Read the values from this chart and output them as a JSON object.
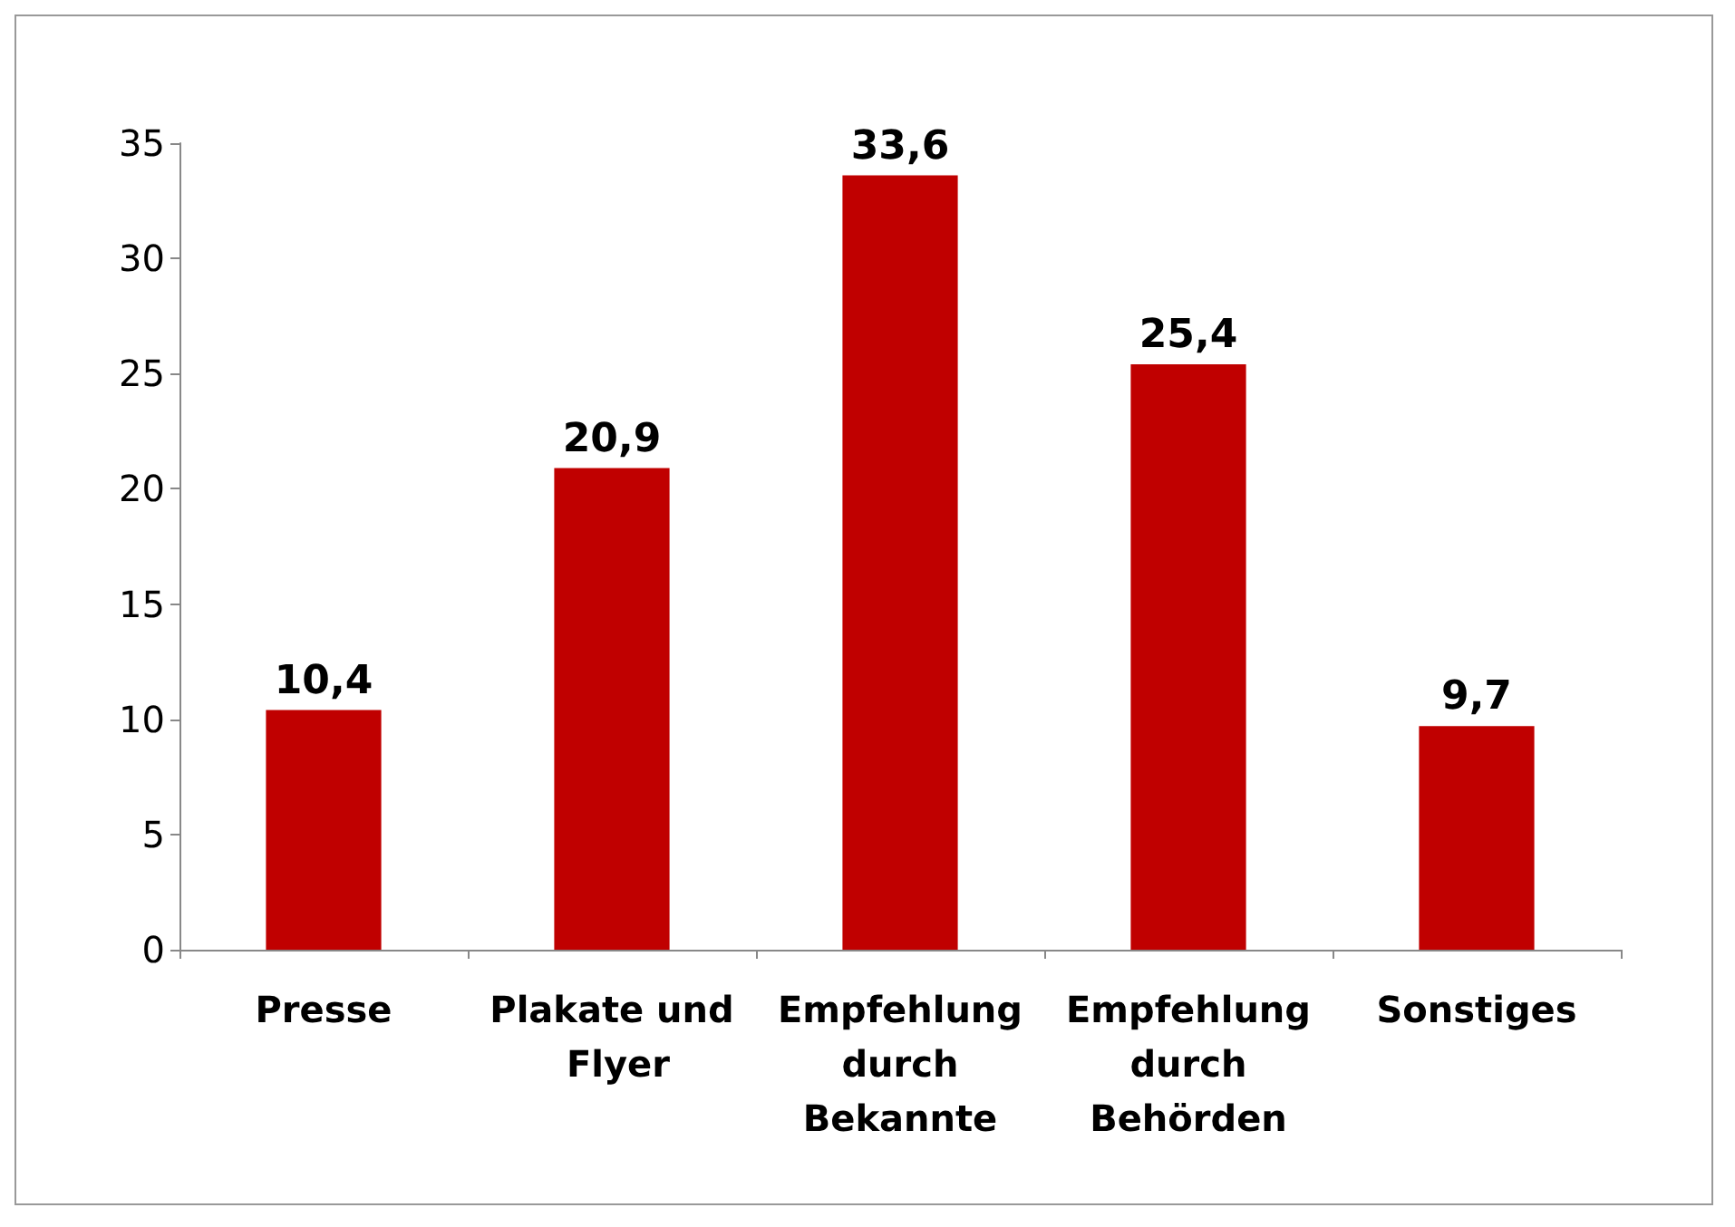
{
  "chart_data": {
    "type": "bar",
    "categories": [
      "Presse",
      "Plakate und Flyer",
      "Empfehlung durch Bekannte",
      "Empfehlung durch Behörden",
      "Sonstiges"
    ],
    "values": [
      10.4,
      20.9,
      33.6,
      25.4,
      9.7
    ],
    "value_labels": [
      "10,4",
      "20,9",
      "33,6",
      "25,4",
      "9,7"
    ],
    "color": "#c00000",
    "ylim": [
      0,
      35
    ],
    "yticks": [
      0,
      5,
      10,
      15,
      20,
      25,
      30,
      35
    ],
    "grid": false
  }
}
